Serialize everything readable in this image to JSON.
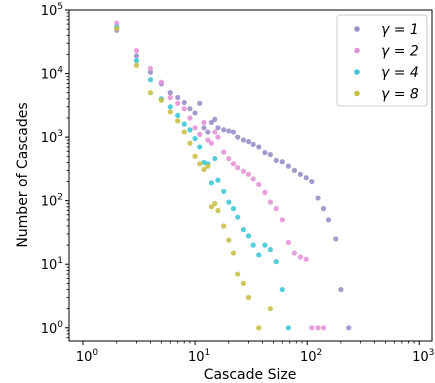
{
  "chart_data": {
    "type": "scatter",
    "xlabel": "Cascade Size",
    "ylabel": "Number of Cascades",
    "xscale": "log",
    "yscale": "log",
    "xlim": [
      0.75,
      1300
    ],
    "ylim": [
      0.62,
      100000
    ],
    "grid": false,
    "legend_position": "top-right",
    "x_ticks": [
      {
        "value": 1,
        "base": "10",
        "exp": "0"
      },
      {
        "value": 10,
        "base": "10",
        "exp": "1"
      },
      {
        "value": 100,
        "base": "10",
        "exp": "2"
      },
      {
        "value": 1000,
        "base": "10",
        "exp": "3"
      }
    ],
    "y_ticks": [
      {
        "value": 1,
        "base": "10",
        "exp": "0"
      },
      {
        "value": 10,
        "base": "10",
        "exp": "1"
      },
      {
        "value": 100,
        "base": "10",
        "exp": "2"
      },
      {
        "value": 1000,
        "base": "10",
        "exp": "3"
      },
      {
        "value": 10000,
        "base": "10",
        "exp": "4"
      },
      {
        "value": 100000,
        "base": "10",
        "exp": "5"
      }
    ],
    "series": [
      {
        "name": "γ = 1",
        "color": "#9b8fc8",
        "points": [
          [
            2,
            48000
          ],
          [
            3,
            19000
          ],
          [
            4,
            10500
          ],
          [
            5,
            6900
          ],
          [
            6,
            5000
          ],
          [
            7,
            4200
          ],
          [
            8,
            3500
          ],
          [
            9,
            2800
          ],
          [
            10,
            2400
          ],
          [
            11,
            3400
          ],
          [
            12,
            1400
          ],
          [
            13,
            1200
          ],
          [
            14,
            1700
          ],
          [
            15,
            1900
          ],
          [
            16,
            1400
          ],
          [
            18,
            1300
          ],
          [
            20,
            1250
          ],
          [
            22,
            1200
          ],
          [
            24,
            1000
          ],
          [
            27,
            900
          ],
          [
            30,
            850
          ],
          [
            33,
            770
          ],
          [
            37,
            700
          ],
          [
            42,
            570
          ],
          [
            47,
            530
          ],
          [
            53,
            430
          ],
          [
            60,
            410
          ],
          [
            68,
            350
          ],
          [
            77,
            300
          ],
          [
            87,
            260
          ],
          [
            98,
            230
          ],
          [
            110,
            200
          ],
          [
            125,
            110
          ],
          [
            140,
            75
          ],
          [
            155,
            50
          ],
          [
            180,
            25
          ],
          [
            200,
            4
          ],
          [
            235,
            1
          ]
        ]
      },
      {
        "name": "γ = 2",
        "color": "#e593d6",
        "points": [
          [
            2,
            62000
          ],
          [
            3,
            23000
          ],
          [
            4,
            12000
          ],
          [
            5,
            7300
          ],
          [
            6,
            4200
          ],
          [
            7,
            3400
          ],
          [
            8,
            2800
          ],
          [
            9,
            2000
          ],
          [
            10,
            1400
          ],
          [
            11,
            1100
          ],
          [
            12,
            1700
          ],
          [
            13,
            900
          ],
          [
            14,
            800
          ],
          [
            15,
            1200
          ],
          [
            16,
            1000
          ],
          [
            18,
            580
          ],
          [
            20,
            460
          ],
          [
            22,
            380
          ],
          [
            24,
            330
          ],
          [
            27,
            290
          ],
          [
            30,
            260
          ],
          [
            33,
            220
          ],
          [
            37,
            180
          ],
          [
            42,
            135
          ],
          [
            47,
            95
          ],
          [
            53,
            75
          ],
          [
            60,
            50
          ],
          [
            68,
            22
          ],
          [
            77,
            15
          ],
          [
            87,
            13
          ],
          [
            98,
            12
          ],
          [
            110,
            1
          ],
          [
            125,
            1
          ],
          [
            140,
            1
          ]
        ]
      },
      {
        "name": "γ = 4",
        "color": "#3fc8d6",
        "points": [
          [
            2,
            54000
          ],
          [
            3,
            16000
          ],
          [
            4,
            8000
          ],
          [
            5,
            4000
          ],
          [
            6,
            3000
          ],
          [
            7,
            2200
          ],
          [
            8,
            1600
          ],
          [
            9,
            1300
          ],
          [
            10,
            950
          ],
          [
            11,
            700
          ],
          [
            12,
            400
          ],
          [
            13,
            380
          ],
          [
            14,
            190
          ],
          [
            15,
            460
          ],
          [
            16,
            210
          ],
          [
            18,
            140
          ],
          [
            20,
            95
          ],
          [
            22,
            75
          ],
          [
            24,
            55
          ],
          [
            27,
            35
          ],
          [
            30,
            28
          ],
          [
            33,
            20
          ],
          [
            37,
            14
          ],
          [
            42,
            20
          ],
          [
            47,
            17
          ],
          [
            53,
            11
          ],
          [
            60,
            4
          ],
          [
            68,
            1
          ]
        ]
      },
      {
        "name": "γ = 8",
        "color": "#c9c046",
        "points": [
          [
            2,
            51000
          ],
          [
            3,
            13500
          ],
          [
            4,
            5000
          ],
          [
            5,
            3800
          ],
          [
            6,
            2500
          ],
          [
            7,
            1800
          ],
          [
            8,
            1200
          ],
          [
            9,
            800
          ],
          [
            10,
            500
          ],
          [
            11,
            380
          ],
          [
            12,
            310
          ],
          [
            13,
            350
          ],
          [
            14,
            80
          ],
          [
            15,
            90
          ],
          [
            16,
            70
          ],
          [
            18,
            40
          ],
          [
            20,
            24
          ],
          [
            22,
            15
          ],
          [
            24,
            7
          ],
          [
            27,
            5
          ],
          [
            30,
            3
          ],
          [
            37,
            1
          ],
          [
            47,
            2
          ]
        ]
      }
    ]
  }
}
